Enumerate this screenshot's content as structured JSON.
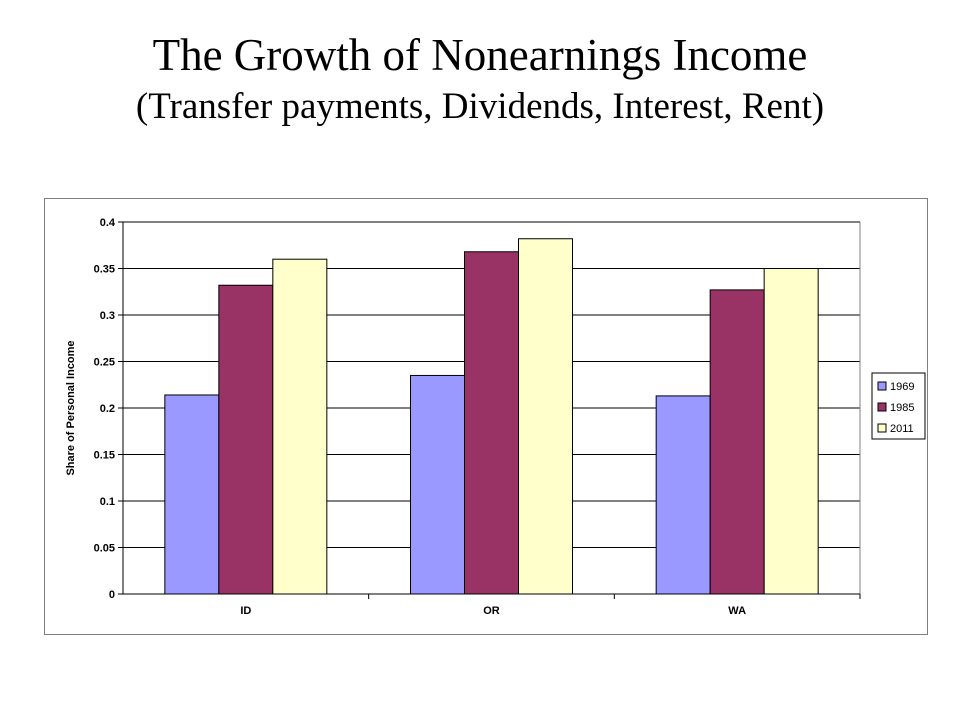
{
  "title": "The Growth of Nonearnings Income",
  "subtitle": "(Transfer payments, Dividends, Interest, Rent)",
  "chart_data": {
    "type": "bar",
    "categories": [
      "ID",
      "OR",
      "WA"
    ],
    "series": [
      {
        "name": "1969",
        "values": [
          0.214,
          0.235,
          0.213
        ],
        "color": "#9999ff"
      },
      {
        "name": "1985",
        "values": [
          0.332,
          0.368,
          0.327
        ],
        "color": "#993366"
      },
      {
        "name": "2011",
        "values": [
          0.36,
          0.382,
          0.35
        ],
        "color": "#ffffcc"
      }
    ],
    "xlabel": "",
    "ylabel": "Share of Personal Income",
    "ylim": [
      0,
      0.4
    ],
    "yticks": [
      "0",
      "0.05",
      "0.1",
      "0.15",
      "0.2",
      "0.25",
      "0.3",
      "0.35",
      "0.4"
    ],
    "grid": true,
    "legend": "right"
  }
}
